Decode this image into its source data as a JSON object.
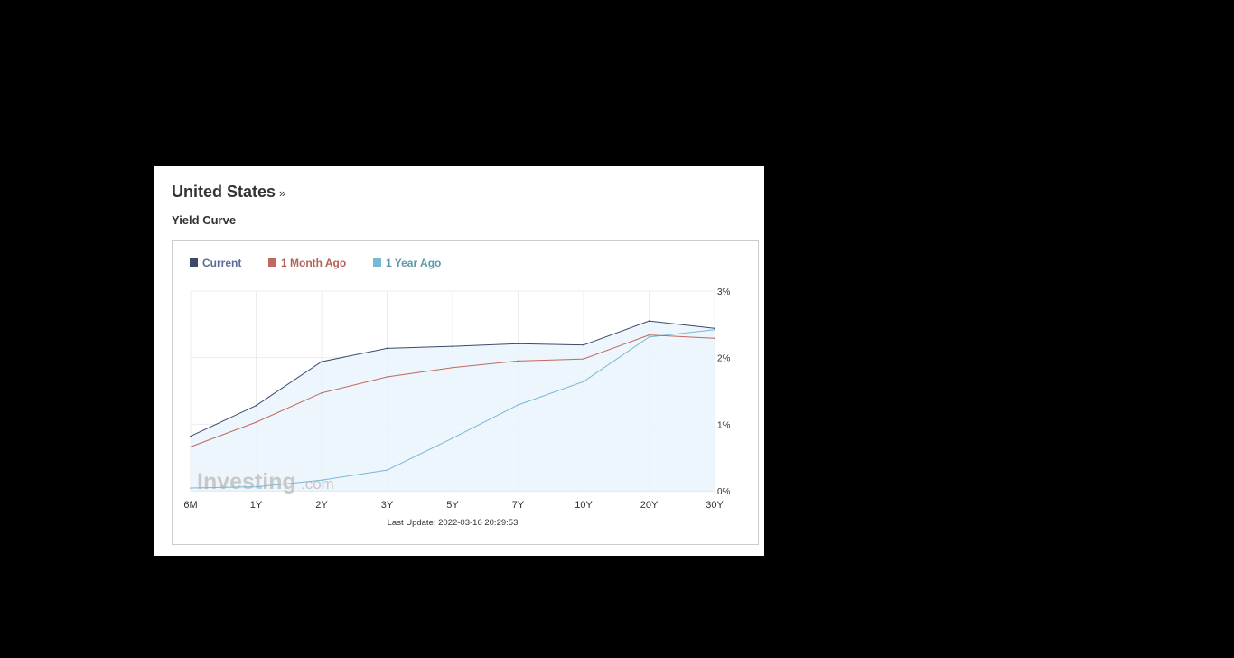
{
  "header": {
    "country": "United States",
    "country_suffix": "»",
    "subtitle": "Yield Curve"
  },
  "legend": [
    {
      "label": "Current",
      "color": "#3c4a6b"
    },
    {
      "label": "1 Month Ago",
      "color": "#c0685f"
    },
    {
      "label": "1 Year Ago",
      "color": "#79b8d3"
    }
  ],
  "watermark": {
    "main": "Investing",
    "suffix": ".com"
  },
  "chart_data": {
    "type": "line",
    "categories": [
      "6M",
      "1Y",
      "2Y",
      "3Y",
      "5Y",
      "7Y",
      "10Y",
      "20Y",
      "30Y"
    ],
    "y_ticks": [
      "0%",
      "1%",
      "2%",
      "3%"
    ],
    "ylim": [
      0,
      3
    ],
    "y_axis_side": "right",
    "grid": true,
    "legend_position": "top-left",
    "series": [
      {
        "name": "Current",
        "color": "#3c4a6b",
        "fill": true,
        "values": [
          0.82,
          1.28,
          1.94,
          2.14,
          2.17,
          2.21,
          2.19,
          2.55,
          2.44
        ]
      },
      {
        "name": "1 Month Ago",
        "color": "#c0685f",
        "fill": false,
        "values": [
          0.66,
          1.03,
          1.47,
          1.71,
          1.85,
          1.95,
          1.98,
          2.34,
          2.29
        ]
      },
      {
        "name": "1 Year Ago",
        "color": "#79b8d3",
        "fill": false,
        "values": [
          0.04,
          0.06,
          0.16,
          0.31,
          0.79,
          1.29,
          1.64,
          2.31,
          2.42
        ]
      }
    ],
    "footer": "Last Update: 2022-03-16 20:29:53"
  }
}
